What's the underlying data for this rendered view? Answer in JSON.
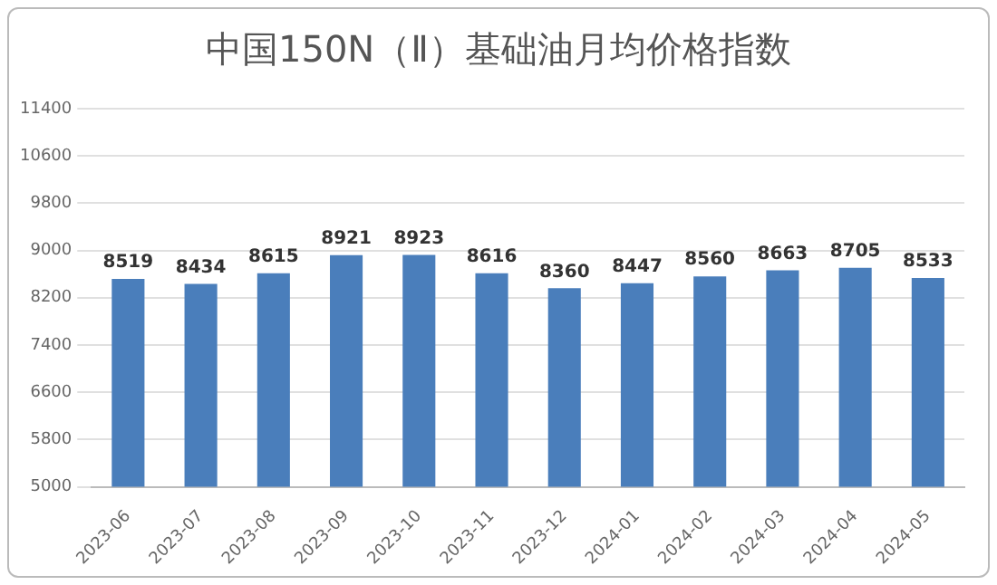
{
  "chart_data": {
    "type": "bar",
    "title": "中国150N（Ⅱ）基础油月均价格指数",
    "categories": [
      "2023-06",
      "2023-07",
      "2023-08",
      "2023-09",
      "2023-10",
      "2023-11",
      "2023-12",
      "2024-01",
      "2024-02",
      "2024-03",
      "2024-04",
      "2024-05"
    ],
    "values": [
      8519,
      8434,
      8615,
      8921,
      8923,
      8616,
      8360,
      8447,
      8560,
      8663,
      8705,
      8533
    ],
    "color": "#4a7ebb",
    "ylim": [
      5000,
      11400
    ],
    "yticks": [
      5000,
      5800,
      6600,
      7400,
      8200,
      9000,
      9800,
      10600,
      11400
    ],
    "grid": "y",
    "data_labels": true,
    "legend": false
  }
}
